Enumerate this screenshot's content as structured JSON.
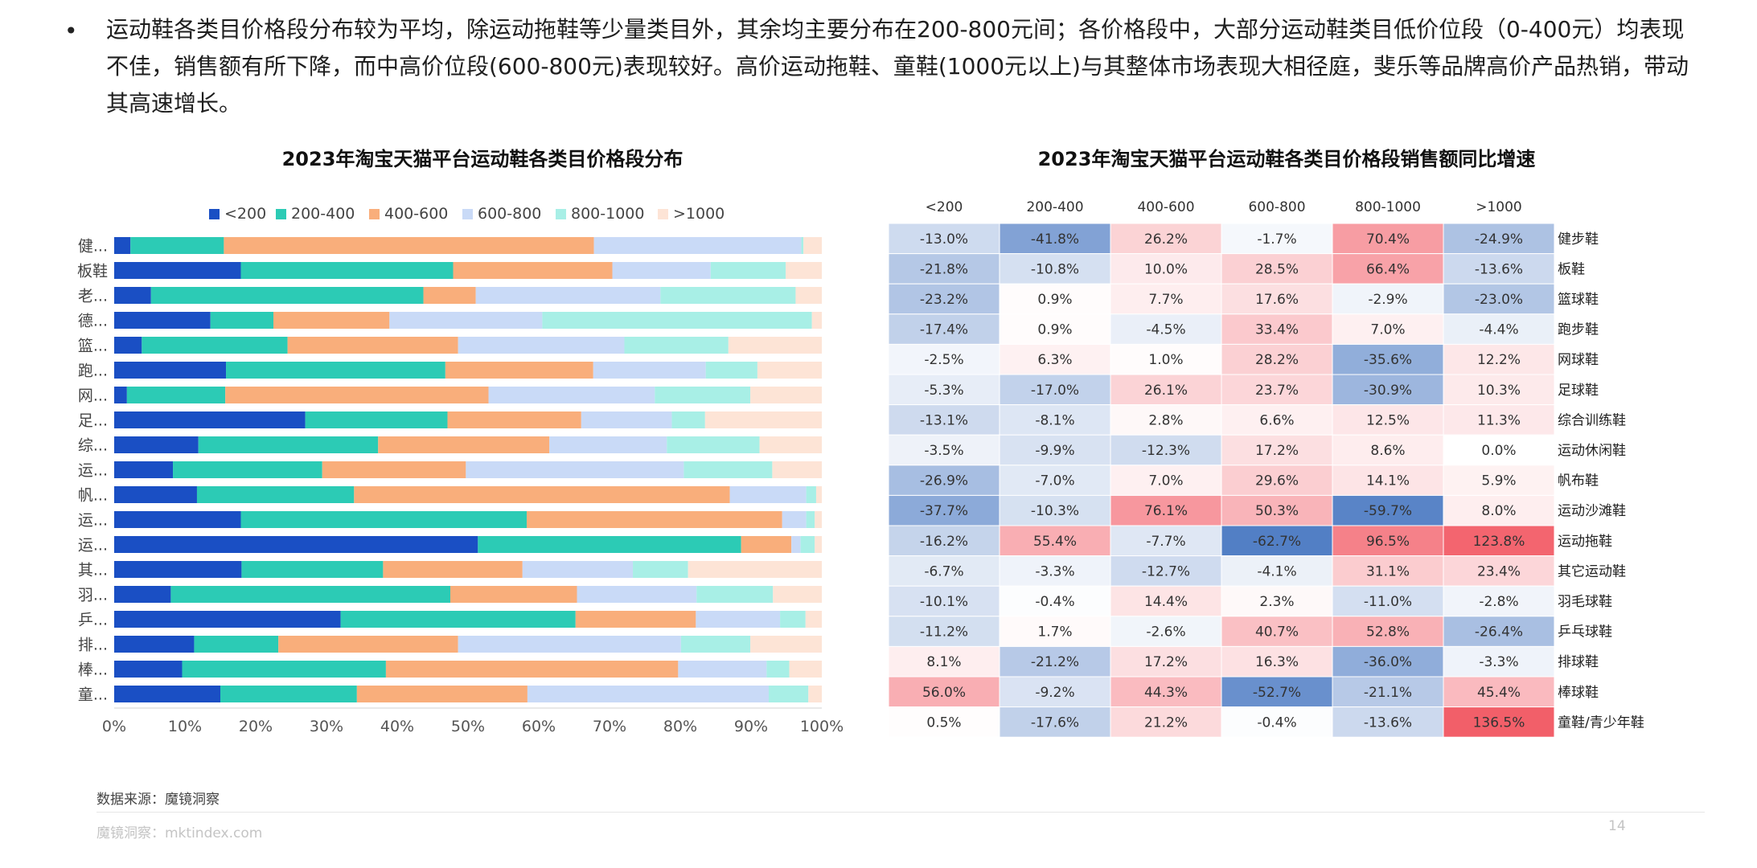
{
  "bullet": {
    "symbol": "•",
    "text": "运动鞋各类目价格段分布较为平均，除运动拖鞋等少量类目外，其余均主要分布在200-800元间；各价格段中，大部分运动鞋类目低价位段（0-400元）均表现不佳，销售额有所下降，而中高价位段(600-800元)表现较好。高价运动拖鞋、童鞋(1000元以上)与其整体市场表现大相径庭，斐乐等品牌高价产品热销，带动其高速增长。"
  },
  "footer": {
    "source": "数据来源：魔镜洞察",
    "watermark": "魔镜洞察：mktindex.com",
    "page": "14"
  },
  "chart_data": [
    {
      "type": "bar",
      "orientation": "horizontal",
      "stacked": "percent",
      "title": "2023年淘宝天猫平台运动鞋各类目价格段分布",
      "legend_position": "top",
      "categories": [
        "健...",
        "板鞋",
        "老...",
        "德...",
        "篮...",
        "跑...",
        "网...",
        "足...",
        "综...",
        "运...",
        "帆...",
        "运...",
        "运...",
        "其...",
        "羽...",
        "乒...",
        "排...",
        "棒...",
        "童..."
      ],
      "xticks": [
        "0%",
        "10%",
        "20%",
        "30%",
        "40%",
        "50%",
        "60%",
        "70%",
        "80%",
        "90%",
        "100%"
      ],
      "xlim": [
        0,
        100
      ],
      "series": [
        {
          "name": "<200",
          "color": "#1a4fc4",
          "values": [
            2.3,
            17.9,
            5.2,
            13.6,
            3.9,
            15.8,
            1.8,
            27.0,
            11.9,
            8.3,
            11.7,
            17.9,
            51.4,
            18.0,
            8.0,
            32.0,
            11.3,
            9.6,
            15.0
          ]
        },
        {
          "name": "200-400",
          "color": "#2ccbb5",
          "values": [
            13.2,
            30.0,
            38.5,
            8.9,
            20.6,
            31.0,
            13.9,
            20.1,
            25.4,
            21.1,
            22.2,
            40.4,
            37.2,
            20.0,
            39.5,
            33.2,
            11.9,
            28.8,
            19.3
          ]
        },
        {
          "name": "400-600",
          "color": "#f9ae7b",
          "values": [
            52.3,
            22.5,
            7.4,
            16.4,
            24.1,
            20.9,
            37.2,
            18.9,
            24.2,
            20.3,
            53.1,
            36.1,
            7.1,
            19.7,
            17.9,
            17.0,
            25.4,
            41.3,
            24.1
          ]
        },
        {
          "name": "600-800",
          "color": "#c9daf7",
          "values": [
            29.3,
            13.9,
            26.1,
            21.6,
            23.5,
            15.9,
            23.5,
            12.8,
            16.6,
            30.8,
            10.8,
            3.4,
            1.3,
            15.6,
            16.9,
            11.9,
            31.5,
            12.5,
            34.1
          ]
        },
        {
          "name": "800-1000",
          "color": "#a8efe6",
          "values": [
            0.3,
            10.6,
            19.1,
            38.1,
            14.7,
            7.3,
            13.5,
            4.7,
            13.1,
            12.5,
            1.4,
            1.2,
            2.0,
            7.8,
            10.8,
            3.6,
            9.8,
            3.2,
            5.6
          ]
        },
        {
          "name": ">1000",
          "color": "#fde4d6",
          "values": [
            2.6,
            5.1,
            3.7,
            1.4,
            13.2,
            9.1,
            10.1,
            16.5,
            8.8,
            7.0,
            0.8,
            1.0,
            1.0,
            18.9,
            6.9,
            2.3,
            10.1,
            4.6,
            1.9
          ]
        }
      ]
    },
    {
      "type": "heatmap",
      "title": "2023年淘宝天猫平台运动鞋各类目价格段销售额同比增速",
      "columns": [
        "<200",
        "200-400",
        "400-600",
        "600-800",
        "800-1000",
        ">1000"
      ],
      "rows": [
        "健步鞋",
        "板鞋",
        "篮球鞋",
        "跑步鞋",
        "网球鞋",
        "足球鞋",
        "综合训练鞋",
        "运动休闲鞋",
        "帆布鞋",
        "运动沙滩鞋",
        "运动拖鞋",
        "其它运动鞋",
        "羽毛球鞋",
        "乒乓球鞋",
        "排球鞋",
        "棒球鞋",
        "童鞋/青少年鞋"
      ],
      "labels": [
        [
          "-13.0%",
          "-41.8%",
          "26.2%",
          "-1.7%",
          "70.4%",
          "-24.9%"
        ],
        [
          "-21.8%",
          "-10.8%",
          "10.0%",
          "28.5%",
          "66.4%",
          "-13.6%"
        ],
        [
          "-23.2%",
          "0.9%",
          "7.7%",
          "17.6%",
          "-2.9%",
          "-23.0%"
        ],
        [
          "-17.4%",
          "0.9%",
          "-4.5%",
          "33.4%",
          "7.0%",
          "-4.4%"
        ],
        [
          "-2.5%",
          "6.3%",
          "1.0%",
          "28.2%",
          "-35.6%",
          "12.2%"
        ],
        [
          "-5.3%",
          "-17.0%",
          "26.1%",
          "23.7%",
          "-30.9%",
          "10.3%"
        ],
        [
          "-13.1%",
          "-8.1%",
          "2.8%",
          "6.6%",
          "12.5%",
          "11.3%"
        ],
        [
          "-3.5%",
          "-9.9%",
          "-12.3%",
          "17.2%",
          "8.6%",
          "0.0%"
        ],
        [
          "-26.9%",
          "-7.0%",
          "7.0%",
          "29.6%",
          "14.1%",
          "5.9%"
        ],
        [
          "-37.7%",
          "-10.3%",
          "76.1%",
          "50.3%",
          "-59.7%",
          "8.0%"
        ],
        [
          "-16.2%",
          "55.4%",
          "-7.7%",
          "-62.7%",
          "96.5%",
          "123.8%"
        ],
        [
          "-6.7%",
          "-3.3%",
          "-12.7%",
          "-4.1%",
          "31.1%",
          "23.4%"
        ],
        [
          "-10.1%",
          "-0.4%",
          "14.4%",
          "2.3%",
          "-11.0%",
          "-2.8%"
        ],
        [
          "-11.2%",
          "1.7%",
          "-2.6%",
          "40.7%",
          "52.8%",
          "-26.4%"
        ],
        [
          "8.1%",
          "-21.2%",
          "17.2%",
          "16.3%",
          "-36.0%",
          "-3.3%"
        ],
        [
          "56.0%",
          "-9.2%",
          "44.3%",
          "-52.7%",
          "-21.1%",
          "45.4%"
        ],
        [
          "0.5%",
          "-17.6%",
          "21.2%",
          "-0.4%",
          "-13.6%",
          "136.5%"
        ]
      ],
      "colors": {
        "negative": "#2e64b9",
        "positive": "#f0434f",
        "neutral": "#ffffff"
      }
    }
  ]
}
